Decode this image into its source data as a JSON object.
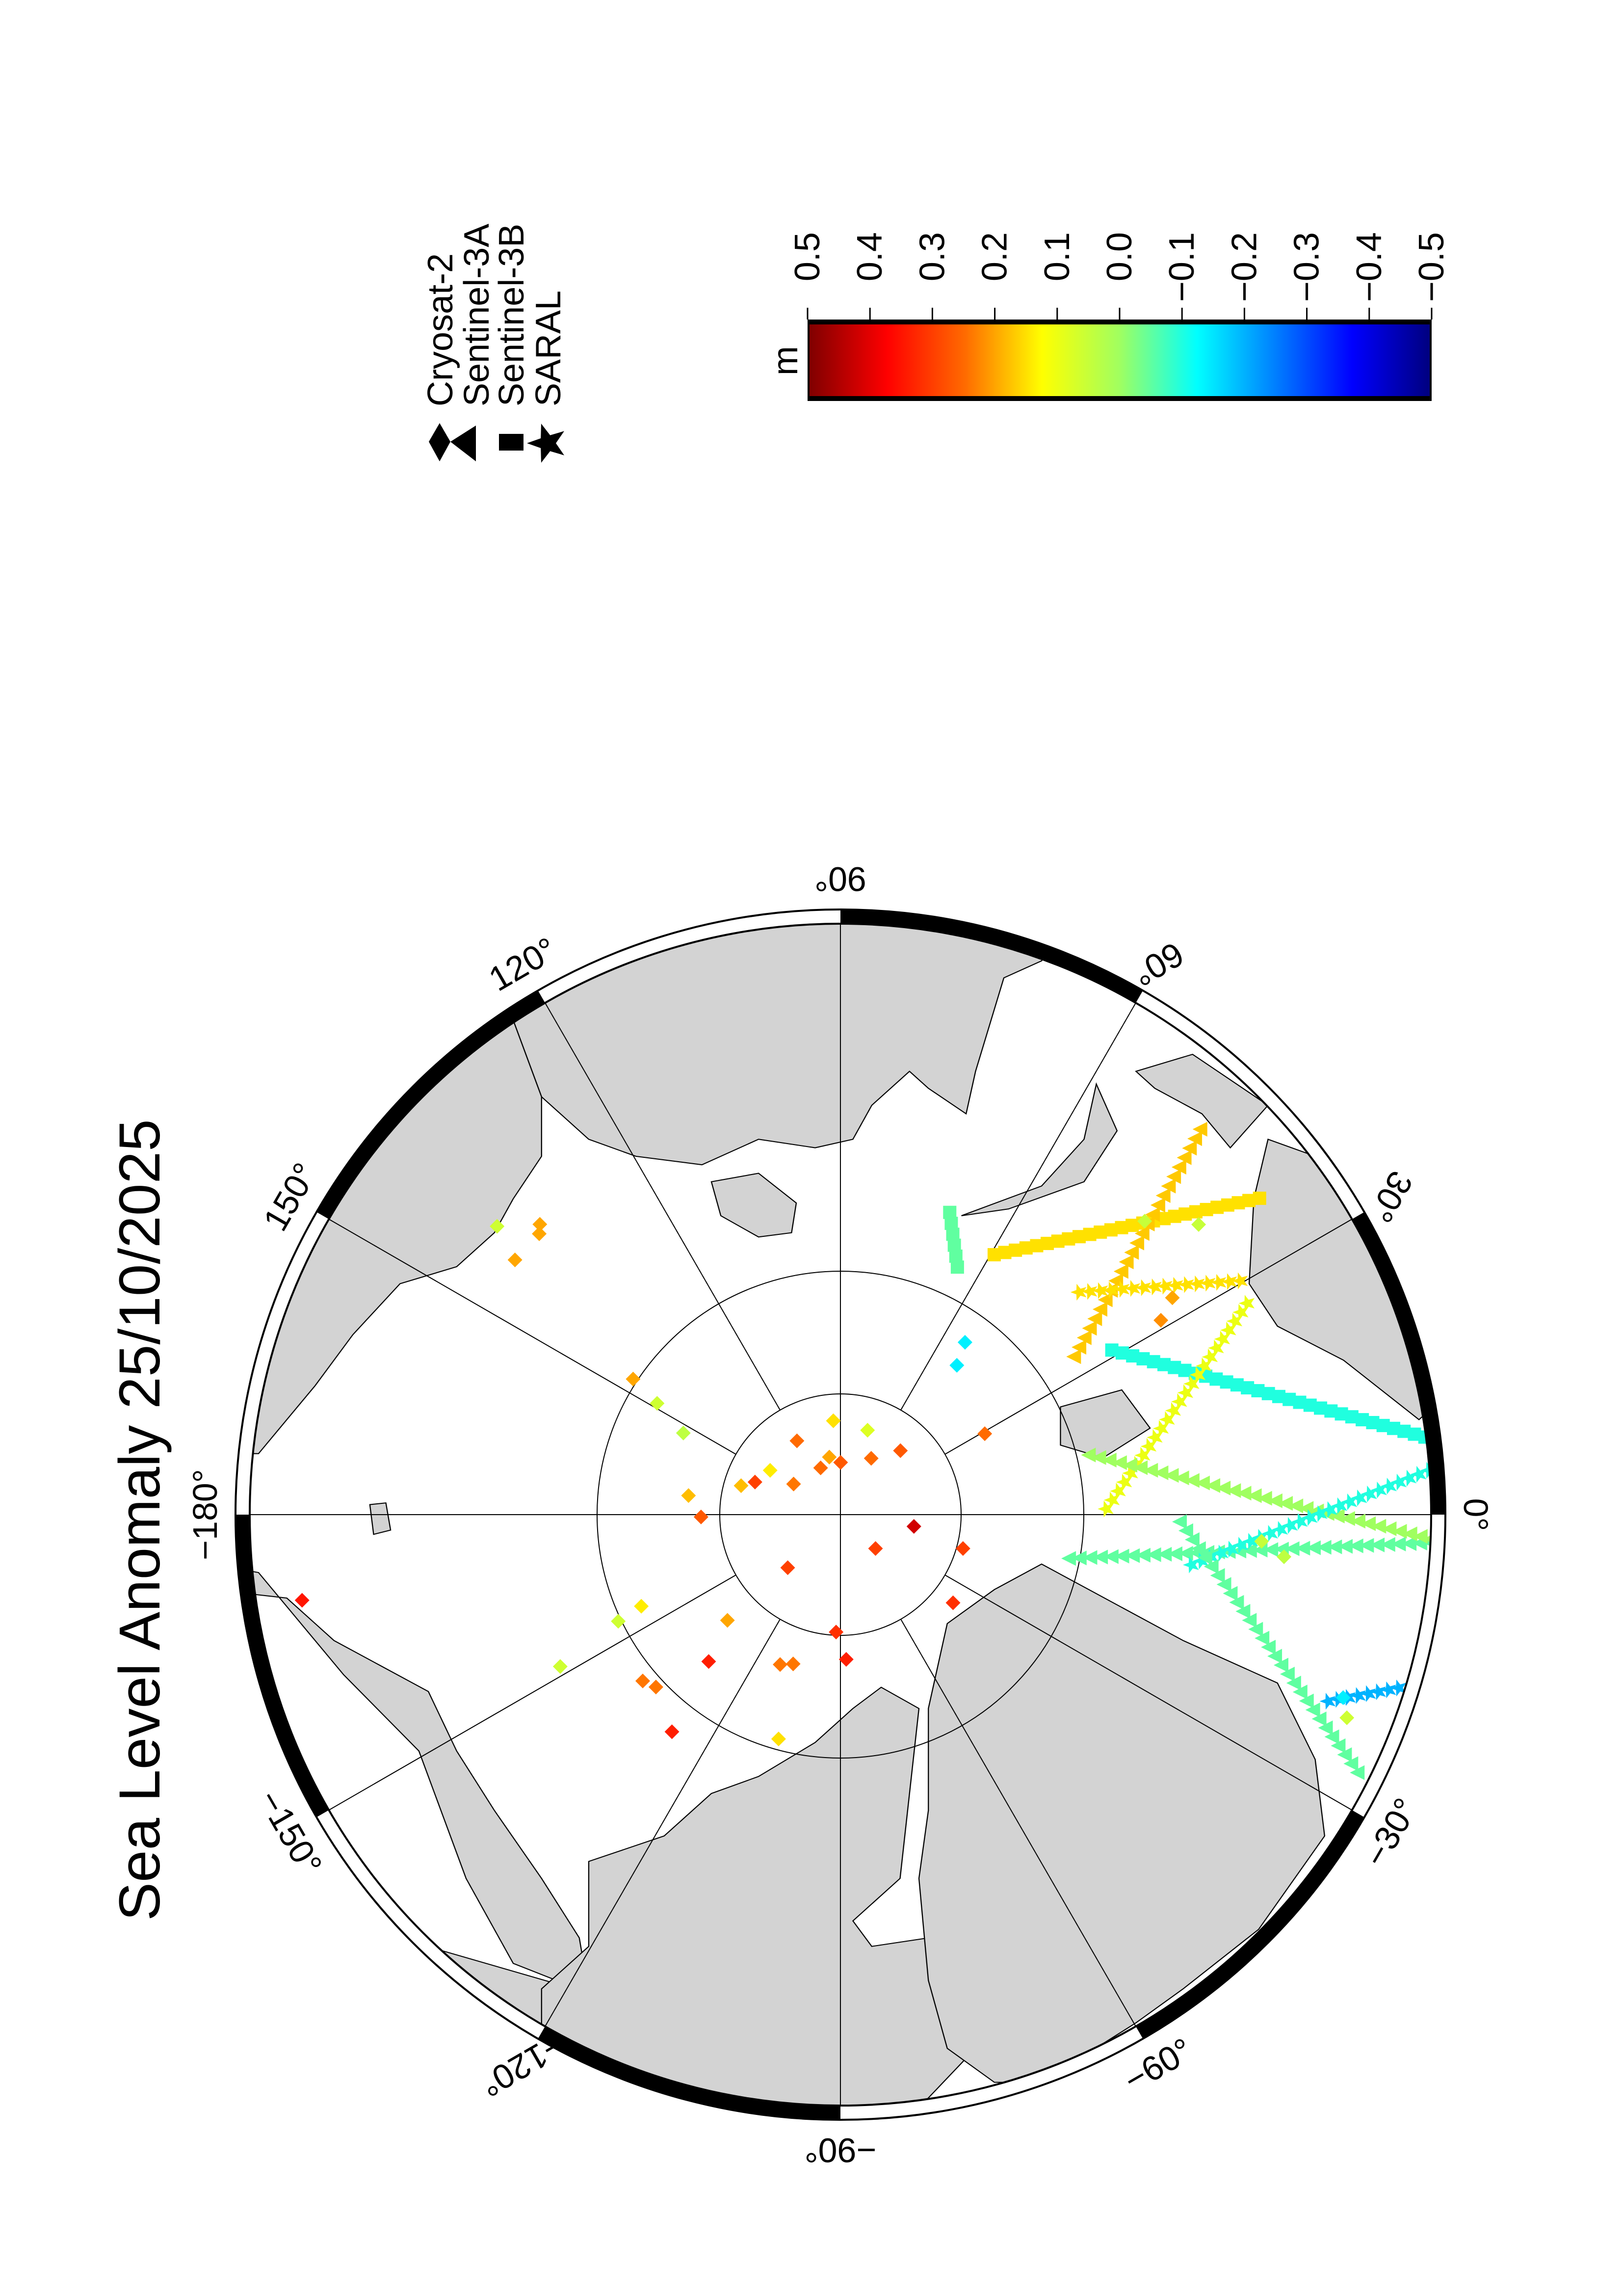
{
  "title": "Sea Level Anomaly 25/10/2025",
  "legend": [
    {
      "mission": "Cryosat-2",
      "symbol": "diamond"
    },
    {
      "mission": "Sentinel-3A",
      "symbol": "triangle"
    },
    {
      "mission": "Sentinel-3B",
      "symbol": "square"
    },
    {
      "mission": "SARAL",
      "symbol": "star"
    }
  ],
  "colorbar": {
    "label": "m",
    "range": [
      -0.5,
      0.5
    ],
    "ticks": [
      "0.5",
      "0.4",
      "0.3",
      "0.2",
      "0.1",
      "0.0",
      "−0.1",
      "−0.2",
      "−0.3",
      "−0.4",
      "−0.5"
    ],
    "colors": [
      "#800000",
      "#ff0000",
      "#ff6a00",
      "#ffff00",
      "#a0ff60",
      "#00ffff",
      "#0080ff",
      "#0000ff",
      "#000080"
    ]
  },
  "map": {
    "projection": "north polar stereographic",
    "land_color": "#d3d3d3",
    "lon_labels": [
      {
        "lon": 0,
        "text": "0°"
      },
      {
        "lon": 30,
        "text": "30°"
      },
      {
        "lon": 60,
        "text": "60°"
      },
      {
        "lon": 90,
        "text": "90°"
      },
      {
        "lon": 120,
        "text": "120°"
      },
      {
        "lon": 150,
        "text": "150°"
      },
      {
        "lon": 180,
        "text": "−180°"
      },
      {
        "lon": -150,
        "text": "−150°"
      },
      {
        "lon": -120,
        "text": "−120°"
      },
      {
        "lon": -90,
        "text": "−90°"
      },
      {
        "lon": -60,
        "text": "−60°"
      },
      {
        "lon": -30,
        "text": "−30°"
      }
    ]
  },
  "chart_data": {
    "type": "scatter",
    "title": "Sea Level Anomaly 25/10/2025",
    "value_unit": "m",
    "observations": [
      {
        "mission": "Cryosat-2",
        "lon": -10,
        "lat": 86.8,
        "sla": 0.42
      },
      {
        "mission": "Cryosat-2",
        "lon": -47,
        "lat": 87.8,
        "sla": 0.3
      },
      {
        "mission": "Cryosat-2",
        "lon": -132,
        "lat": 86.6,
        "sla": 0.3
      },
      {
        "mission": "Cryosat-2",
        "lon": -17,
        "lat": 84.5,
        "sla": 0.3
      },
      {
        "mission": "Cryosat-2",
        "lon": -41,
        "lat": 83.6,
        "sla": 0.32
      },
      {
        "mission": "Cryosat-2",
        "lon": -179,
        "lat": 84,
        "sla": 0.27
      },
      {
        "mission": "Cryosat-2",
        "lon": 94,
        "lat": 85.5,
        "sla": 0.15
      },
      {
        "mission": "Cryosat-2",
        "lon": 74,
        "lat": 85.8,
        "sla": 0.08
      },
      {
        "mission": "Cryosat-2",
        "lon": 118,
        "lat": 86,
        "sla": 0.25
      },
      {
        "mission": "Cryosat-2",
        "lon": 64,
        "lat": 87,
        "sla": 0.25
      },
      {
        "mission": "Cryosat-2",
        "lon": 50,
        "lat": 86,
        "sla": 0.27
      },
      {
        "mission": "Cryosat-2",
        "lon": 111,
        "lat": 87.6,
        "sla": 0.25
      },
      {
        "mission": "Cryosat-2",
        "lon": 90,
        "lat": 87.5,
        "sla": 0.27
      },
      {
        "mission": "Cryosat-2",
        "lon": 100,
        "lat": 87.2,
        "sla": 0.2
      },
      {
        "mission": "Cryosat-2",
        "lon": 145,
        "lat": 86.3,
        "sla": 0.14
      },
      {
        "mission": "Cryosat-2",
        "lon": 162,
        "lat": 85.5,
        "sla": 0.18
      },
      {
        "mission": "Cryosat-2",
        "lon": 157,
        "lat": 86,
        "sla": 0.3
      },
      {
        "mission": "Cryosat-2",
        "lon": 144,
        "lat": 87.5,
        "sla": 0.24
      },
      {
        "mission": "Cryosat-2",
        "lon": 172,
        "lat": 83.4,
        "sla": 0.18
      },
      {
        "mission": "Cryosat-2",
        "lon": 144,
        "lat": 79,
        "sla": 0.2
      },
      {
        "mission": "Cryosat-2",
        "lon": 146,
        "lat": 80.5,
        "sla": 0.06
      },
      {
        "mission": "Cryosat-2",
        "lon": 150,
        "lat": 82.2,
        "sla": 0.04
      },
      {
        "mission": "Cryosat-2",
        "lon": 32,
        "lat": 82.7,
        "sla": 0.25
      },
      {
        "mission": "Cryosat-2",
        "lon": -92,
        "lat": 84.4,
        "sla": 0.32
      },
      {
        "mission": "Cryosat-2",
        "lon": -88,
        "lat": 83.1,
        "sla": 0.34
      },
      {
        "mission": "Cryosat-2",
        "lon": -106,
        "lat": 82.6,
        "sla": 0.24
      },
      {
        "mission": "Cryosat-2",
        "lon": -110,
        "lat": 82.4,
        "sla": 0.24
      },
      {
        "mission": "Cryosat-2",
        "lon": -134,
        "lat": 83,
        "sla": 0.2
      },
      {
        "mission": "Cryosat-2",
        "lon": -129,
        "lat": 81,
        "sla": 0.34
      },
      {
        "mission": "Cryosat-2",
        "lon": -153,
        "lat": 80.4,
        "sla": 0.14
      },
      {
        "mission": "Cryosat-2",
        "lon": -152,
        "lat": 79.2,
        "sla": 0.06
      },
      {
        "mission": "Cryosat-2",
        "lon": -137,
        "lat": 78.4,
        "sla": 0.24
      },
      {
        "mission": "Cryosat-2",
        "lon": -134,
        "lat": 78.6,
        "sla": 0.24
      },
      {
        "mission": "Cryosat-2",
        "lon": -125,
        "lat": 77.4,
        "sla": 0.34
      },
      {
        "mission": "Cryosat-2",
        "lon": -104,
        "lat": 79,
        "sla": 0.15
      },
      {
        "mission": "Cryosat-2",
        "lon": -149,
        "lat": 76,
        "sla": 0.06
      },
      {
        "mission": "Cryosat-2",
        "lon": -170,
        "lat": 66.8,
        "sla": 0.35
      },
      {
        "mission": "Cryosat-2",
        "lon": 134,
        "lat": 71.5,
        "sla": 0.2
      },
      {
        "mission": "Cryosat-2",
        "lon": 133,
        "lat": 71.2,
        "sla": 0.2
      },
      {
        "mission": "Cryosat-2",
        "lon": 139,
        "lat": 71.6,
        "sla": 0.2
      },
      {
        "mission": "Cryosat-2",
        "lon": 137,
        "lat": 70,
        "sla": 0.06
      },
      {
        "mission": "Cryosat-2",
        "lon": 55,
        "lat": 81.3,
        "sla": -0.14
      },
      {
        "mission": "Cryosat-2",
        "lon": 57,
        "lat": 80.2,
        "sla": -0.14
      },
      {
        "mission": "Cryosat-2",
        "lon": 36,
        "lat": 72.5,
        "sla": 0.2
      },
      {
        "mission": "Cryosat-2",
        "lon": 34,
        "lat": 73.5,
        "sla": 0.22
      },
      {
        "mission": "Cryosat-2",
        "lon": 47,
        "lat": 71,
        "sla": 0.05
      },
      {
        "mission": "Cryosat-2",
        "lon": 42,
        "lat": 69.5,
        "sla": 0.05
      },
      {
        "mission": "Cryosat-2",
        "lon": -4,
        "lat": 72,
        "sla": 0.05
      },
      {
        "mission": "Cryosat-2",
        "lon": -6,
        "lat": 71,
        "sla": 0.04
      },
      {
        "mission": "Cryosat-2",
        "lon": -22,
        "lat": 67,
        "sla": -0.14
      },
      {
        "mission": "Cryosat-2",
        "lon": -24,
        "lat": 66.5,
        "sla": 0.06
      }
    ],
    "tracks": [
      {
        "mission": "Sentinel-3B",
        "start": [
          40,
          66.8
        ],
        "end": [
          62,
          76
        ],
        "sla": 0.15
      },
      {
        "mission": "Sentinel-3A",
        "start": [
          50,
          66.3
        ],
        "end": [
          37,
          77.5
        ],
        "sla": 0.17
      },
      {
        "mission": "SARAL",
        "start": [
          46,
          75.3
        ],
        "end": [
          33,
          69.7
        ],
        "sla": 0.15
      },
      {
        "mission": "Sentinel-3B",
        "start": [
          72,
          74.9
        ],
        "end": [
          67,
          77.2
        ],
        "sla": -0.05
      },
      {
        "mission": "Sentinel-3B",
        "start": [
          34,
          76
        ],
        "end": [
          8.4,
          65
        ],
        "sla": -0.1
      },
      {
        "mission": "Sentinel-3A",
        "start": [
          -12,
          80
        ],
        "end": [
          -3,
          65
        ],
        "sla": -0.05
      },
      {
        "mission": "SARAL",
        "start": [
          1.4,
          78.6
        ],
        "end": [
          30,
          70
        ],
        "sla": 0.1
      },
      {
        "mission": "Sentinel-3A",
        "start": [
          15,
          79
        ],
        "end": [
          -2.6,
          65
        ],
        "sla": 0.0
      },
      {
        "mission": "SARAL",
        "start": [
          -9,
          74.8
        ],
        "end": [
          4.8,
          65
        ],
        "sla": -0.1
      },
      {
        "mission": "Sentinel-3A",
        "start": [
          -1.3,
          75.5
        ],
        "end": [
          -29,
          65
        ],
        "sla": -0.05
      },
      {
        "mission": "SARAL",
        "start": [
          -23,
          67.5
        ],
        "end": [
          -19,
          65
        ],
        "sla": -0.2
      }
    ]
  }
}
